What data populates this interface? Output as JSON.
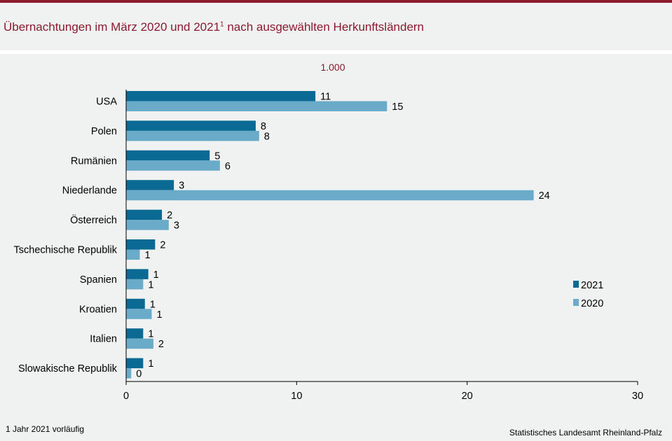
{
  "header": {
    "title": "Übernachtungen im März 2020 und 2021",
    "title_sup": "1",
    "title_suffix": " nach ausgewählten Herkunftsländern"
  },
  "unit_label": "1.000",
  "footnote": "1 Jahr 2021 vorläufig",
  "source": "Statistisches Landesamt Rheinland-Pfalz",
  "colors": {
    "accent": "#8c1a2f",
    "series_2021": "#0b6a94",
    "series_2020": "#6aabc9",
    "background": "#f0f1f1"
  },
  "chart_data": {
    "type": "bar",
    "orientation": "horizontal",
    "categories": [
      "USA",
      "Polen",
      "Rumänien",
      "Niederlande",
      "Österreich",
      "Tschechische Republik",
      "Spanien",
      "Kroatien",
      "Italien",
      "Slowakische Republik"
    ],
    "series": [
      {
        "name": "2021",
        "values": [
          11.1,
          7.6,
          4.9,
          2.8,
          2.1,
          1.7,
          1.3,
          1.1,
          1.0,
          1.0
        ],
        "labels": [
          "11",
          "8",
          "5",
          "3",
          "2",
          "2",
          "1",
          "1",
          "1",
          "1"
        ]
      },
      {
        "name": "2020",
        "values": [
          15.3,
          7.8,
          5.5,
          23.9,
          2.5,
          0.8,
          1.0,
          1.5,
          1.6,
          0.3
        ],
        "labels": [
          "15",
          "8",
          "6",
          "24",
          "3",
          "1",
          "1",
          "1",
          "2",
          "0"
        ]
      }
    ],
    "xlim": [
      0,
      30
    ],
    "xticks": [
      0,
      10,
      20,
      30
    ],
    "xlabel": "",
    "ylabel": "",
    "legend": "right",
    "grid": false
  }
}
